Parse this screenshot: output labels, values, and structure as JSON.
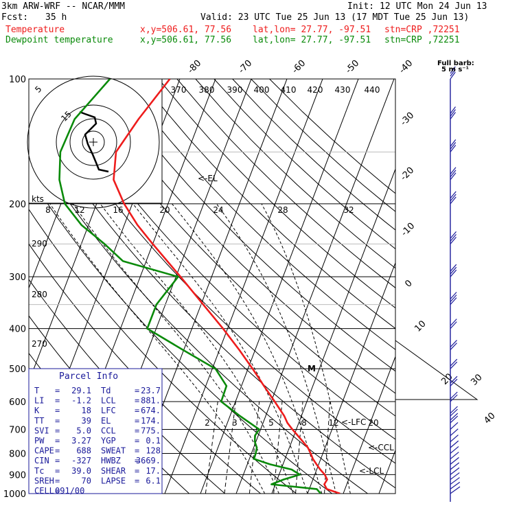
{
  "header": {
    "model": "3km ARW-WRF -- NCAR/MMM",
    "init": "Init: 12 UTC Mon 24 Jun 13",
    "fcst_label": "Fcst:",
    "fcst_value": "35 h",
    "valid": "Valid: 23 UTC Tue 25 Jun 13 (17 MDT Tue 25 Jun 13)",
    "temperature_line": {
      "label": "Temperature",
      "xy": "x,y=506.61, 77.56",
      "latlon": "lat,lon= 27.77, -97.51",
      "stn": "stn=CRP ,72251"
    },
    "dewpoint_line": {
      "label": "Dewpoint temperature",
      "xy": "x,y=506.61, 77.56",
      "latlon": "lat,lon= 27.77, -97.51",
      "stn": "stn=CRP ,72251"
    }
  },
  "colors": {
    "temperature": "#ee1c1c",
    "dewpoint": "#0a8a0a",
    "wind": "#1a1a9a",
    "grid": "#000000"
  },
  "barb_legend": [
    "Full barb:",
    "5 m s⁻¹"
  ],
  "parcel_info": {
    "title": "Parcel Info",
    "rows": [
      [
        "T",
        "=",
        "29.1",
        "Td",
        "=",
        "23.7"
      ],
      [
        "LI",
        "=",
        "-1.2",
        "LCL",
        "=",
        "881."
      ],
      [
        "K",
        "=",
        "18",
        "LFC",
        "=",
        "674."
      ],
      [
        "TT",
        "=",
        "39",
        "EL",
        "=",
        "174."
      ],
      [
        "SVI",
        "=",
        "5.0",
        "CCL",
        "=",
        "775."
      ],
      [
        "PW",
        "=",
        "3.27",
        "YGP",
        "=",
        "0.1"
      ],
      [
        "CAPE",
        "=",
        "688",
        "SWEAT",
        "=",
        "128"
      ],
      [
        "CIN",
        "=",
        "-327",
        "HWBZ",
        "=",
        "3669."
      ],
      [
        "Tc",
        "=",
        "39.0",
        "SHEAR",
        "=",
        "17."
      ],
      [
        "SREH",
        "=",
        "70",
        "LAPSE",
        "=",
        "6.1"
      ],
      [
        "CELL",
        "=",
        "091/00",
        "",
        "",
        ""
      ]
    ]
  },
  "level_labels": {
    "el": "<-EL",
    "lfc": "<-LFC",
    "ccl": "<-CCL",
    "lcl": "<-LCL"
  },
  "hodograph": {
    "units": "kts",
    "ring_labels": [
      "5",
      "15"
    ]
  },
  "chart_data": {
    "type": "line",
    "pressure_levels": [
      100,
      200,
      300,
      400,
      500,
      600,
      700,
      800,
      900,
      1000
    ],
    "pressure_axis": "log",
    "isotherm_labels": [
      "-80",
      "-70",
      "-60",
      "-50",
      "-40",
      "-30",
      "-20",
      "-10",
      "0",
      "10",
      "20",
      "30",
      "40"
    ],
    "theta_labels_top": [
      "370",
      "380",
      "390",
      "400",
      "410",
      "420",
      "430",
      "440"
    ],
    "mixing_ratio_labels_mid": [
      "8",
      "12",
      "16",
      "20",
      "24",
      "28",
      "32"
    ],
    "mixing_ratio_labels_low": [
      "2",
      "3",
      "5",
      "8",
      "12",
      "20"
    ],
    "dry_adiabat_labels_left": [
      "290",
      "280",
      "270"
    ],
    "marker_label": "M",
    "series": [
      {
        "name": "Temperature",
        "pressure": [
          1000,
          975,
          950,
          925,
          900,
          875,
          850,
          825,
          800,
          775,
          750,
          725,
          700,
          675,
          650,
          600,
          550,
          500,
          450,
          400,
          350,
          300,
          250,
          225,
          200,
          175,
          150,
          125,
          100
        ],
        "values": [
          29.1,
          24.9,
          23.7,
          24.0,
          22.8,
          21.0,
          19.4,
          17.8,
          16.6,
          15.2,
          13.2,
          11.1,
          8.9,
          6.8,
          5.2,
          1.0,
          -3.7,
          -8.7,
          -14.5,
          -21.3,
          -29.4,
          -38.7,
          -50.0,
          -56.3,
          -62.3,
          -67.8,
          -70.1,
          -67.3,
          -62.8
        ]
      },
      {
        "name": "Dewpoint temperature",
        "pressure": [
          1000,
          975,
          950,
          925,
          900,
          875,
          850,
          825,
          800,
          775,
          750,
          725,
          700,
          650,
          600,
          550,
          500,
          450,
          400,
          350,
          300,
          275,
          250,
          225,
          200,
          175,
          150,
          125,
          100
        ],
        "values": [
          23.7,
          22.1,
          8.9,
          11.8,
          15.8,
          13.0,
          6.4,
          1.3,
          1.2,
          0.9,
          -0.3,
          -0.9,
          -0.4,
          -7.2,
          -14.0,
          -14.2,
          -19.1,
          -30.3,
          -42.5,
          -42.5,
          -39.4,
          -56.5,
          -63.5,
          -72.0,
          -78.9,
          -83.0,
          -85.7,
          -85.2,
          -79.6
        ]
      }
    ],
    "wind_barbs_pressure": [
      1000,
      975,
      950,
      925,
      900,
      875,
      850,
      825,
      800,
      775,
      750,
      725,
      700,
      675,
      650,
      600,
      550,
      500,
      450,
      400,
      350,
      300,
      250,
      200,
      175,
      150,
      125,
      100
    ]
  }
}
